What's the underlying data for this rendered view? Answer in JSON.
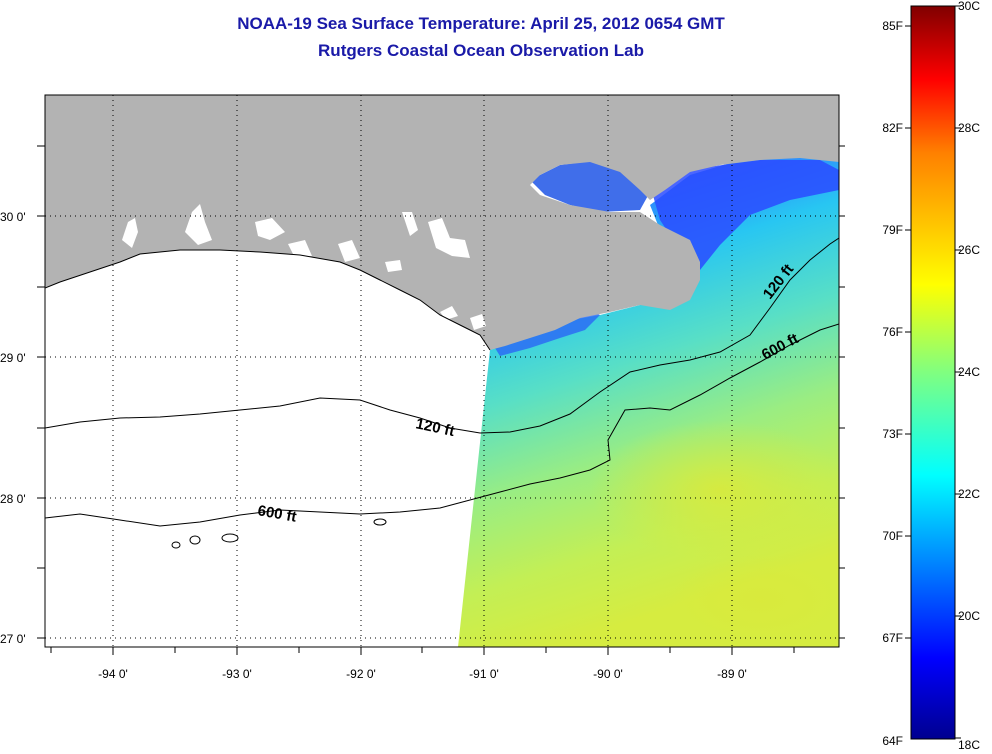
{
  "title": {
    "line1": "NOAA-19 Sea Surface Temperature:  April 25, 2012 0654 GMT",
    "line2": "Rutgers Coastal Ocean Observation Lab"
  },
  "map": {
    "lon_ticks": [
      "-94 0'",
      "-93 0'",
      "-92 0'",
      "-91 0'",
      "-90 0'",
      "-89 0'"
    ],
    "lat_ticks": [
      "30 0'",
      "29 0'",
      "28 0'",
      "27 0'"
    ],
    "land_color": "#b3b3b3",
    "isobaths": [
      {
        "label": "120 ft"
      },
      {
        "label": "120 ft"
      },
      {
        "label": "600 ft"
      },
      {
        "label": "600 ft"
      }
    ]
  },
  "colorbar": {
    "fahrenheit": [
      "85F",
      "82F",
      "79F",
      "76F",
      "73F",
      "70F",
      "67F",
      "64F"
    ],
    "celsius": [
      "30C",
      "28C",
      "26C",
      "24C",
      "22C",
      "20C",
      "18C"
    ],
    "colors": [
      "#00008f",
      "#0000ff",
      "#0080ff",
      "#00ffff",
      "#80ff80",
      "#ffff00",
      "#ff8000",
      "#ff0000",
      "#800000"
    ]
  }
}
